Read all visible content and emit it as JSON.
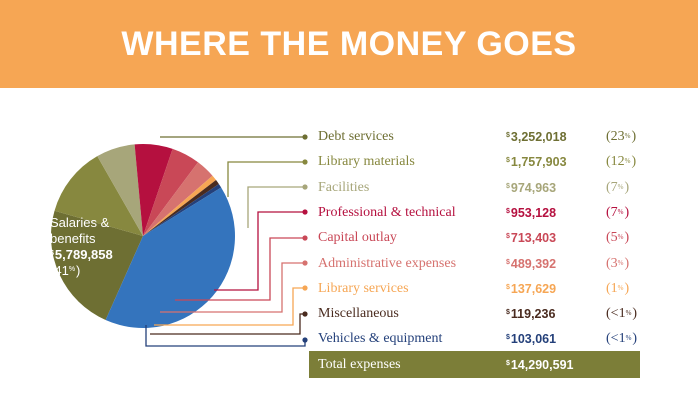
{
  "header": {
    "title": "WHERE THE MONEY GOES"
  },
  "chart_data": {
    "type": "pie",
    "title": "WHERE THE MONEY GOES",
    "slices": [
      {
        "name": "Debt services",
        "amount_text": "3,252,018",
        "pct_text": "23",
        "value": 3252018,
        "color": "#6e6f33"
      },
      {
        "name": "Library materials",
        "amount_text": "1,757,903",
        "pct_text": "12",
        "value": 1757903,
        "color": "#87883f"
      },
      {
        "name": "Facilities",
        "amount_text": "974,963",
        "pct_text": "7",
        "value": 974963,
        "color": "#a7a67a"
      },
      {
        "name": "Professional & technical",
        "amount_text": "953,128",
        "pct_text": "7",
        "value": 953128,
        "color": "#b5103f"
      },
      {
        "name": "Capital outlay",
        "amount_text": "713,403",
        "pct_text": "5",
        "value": 713403,
        "color": "#c94857"
      },
      {
        "name": "Administrative expenses",
        "amount_text": "489,392",
        "pct_text": "3",
        "value": 489392,
        "color": "#d6726f"
      },
      {
        "name": "Library services",
        "amount_text": "137,629",
        "pct_text": "1",
        "value": 137629,
        "color": "#f6a654"
      },
      {
        "name": "Miscellaneous",
        "amount_text": "119,236",
        "pct_text": "<1",
        "value": 119236,
        "color": "#4a2b1f"
      },
      {
        "name": "Vehicles & equipment",
        "amount_text": "103,061",
        "pct_text": "<1",
        "value": 103061,
        "color": "#24407a"
      },
      {
        "name": "Salaries & benefits",
        "amount_text": "5,789,858",
        "pct_text": "41",
        "value": 5789858,
        "color": "#3474bd"
      }
    ],
    "pie_label": {
      "line1": "Salaries &",
      "line2": "benefits",
      "amount": "5,789,858",
      "pct": "41"
    },
    "total": {
      "label": "Total expenses",
      "amount": "14,290,591"
    },
    "currency_symbol": "$",
    "percent_symbol": "%"
  }
}
